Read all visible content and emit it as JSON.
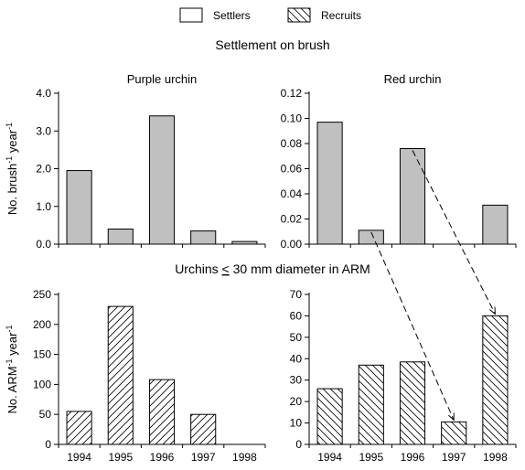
{
  "legend": [
    {
      "label": "Settlers",
      "pattern": "gray"
    },
    {
      "label": "Recruits",
      "pattern": "hatch-down"
    }
  ],
  "section_titles": {
    "top": "Settlement on brush",
    "bottom_prefix": "Urchins ",
    "bottom_symbol": "<",
    "bottom_suffix": " 30 mm diameter in ARM"
  },
  "colors": {
    "settler_fill": "#c0c0c0",
    "recruit_fill": "#ffffff",
    "stroke": "#000000"
  },
  "chart_data": [
    {
      "type": "bar",
      "title": "Purple urchin",
      "ylabel": "No. brush",
      "ylabel_sup": "-1",
      "ylabel_tail": " year",
      "ylabel_sup2": "-1",
      "categories": [
        "1994",
        "1995",
        "1996",
        "1997",
        "1998"
      ],
      "values": [
        1.95,
        0.4,
        3.4,
        0.35,
        0.07
      ],
      "ylim": [
        0,
        4.0
      ],
      "yticks": [
        "0.0",
        "1.0",
        "2.0",
        "3.0",
        "4.0"
      ],
      "pattern": "settler"
    },
    {
      "type": "bar",
      "title": "Red urchin",
      "categories": [
        "1994",
        "1995",
        "1996",
        "1997",
        "1998"
      ],
      "values": [
        0.097,
        0.011,
        0.076,
        0,
        0.031
      ],
      "ylim": [
        0,
        0.12
      ],
      "yticks": [
        "0.00",
        "0.02",
        "0.04",
        "0.06",
        "0.08",
        "0.10",
        "0.12"
      ],
      "pattern": "settler"
    },
    {
      "type": "bar",
      "ylabel": "No. ARM",
      "ylabel_sup": "-1",
      "ylabel_tail": " year",
      "ylabel_sup2": "-1",
      "categories": [
        "1994",
        "1995",
        "1996",
        "1997",
        "1998"
      ],
      "values": [
        55,
        230,
        108,
        50,
        0
      ],
      "ylim": [
        0,
        250
      ],
      "yticks": [
        "0",
        "50",
        "100",
        "150",
        "200",
        "250"
      ],
      "pattern": "recruit-up"
    },
    {
      "type": "bar",
      "categories": [
        "1994",
        "1995",
        "1996",
        "1997",
        "1998"
      ],
      "values": [
        26,
        37,
        38.5,
        10.5,
        60
      ],
      "ylim": [
        0,
        70
      ],
      "yticks": [
        "0",
        "10",
        "20",
        "30",
        "40",
        "50",
        "60",
        "70"
      ],
      "pattern": "recruit-down"
    }
  ],
  "arrows": [
    {
      "from_panel": 1,
      "from_index": 1,
      "to_panel": 3,
      "to_index": 3
    },
    {
      "from_panel": 1,
      "from_index": 2,
      "to_panel": 3,
      "to_index": 4
    }
  ]
}
